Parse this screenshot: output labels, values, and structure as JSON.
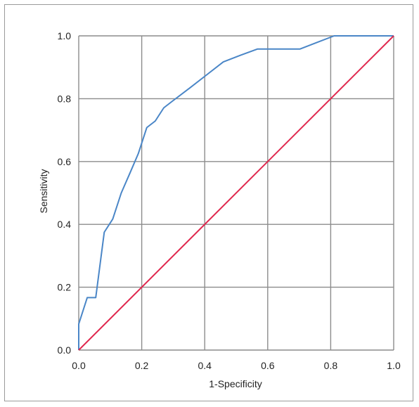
{
  "chart_data": {
    "type": "line",
    "title": "",
    "xlabel": "1-Specificity",
    "ylabel": "Sensitivity",
    "xlim": [
      0,
      1
    ],
    "ylim": [
      0,
      1
    ],
    "grid": true,
    "x_ticks": [
      "0.0",
      "0.2",
      "0.4",
      "0.6",
      "0.8",
      "1.0"
    ],
    "y_ticks": [
      "0.0",
      "0.2",
      "0.4",
      "0.6",
      "0.8",
      "1.0"
    ],
    "series": [
      {
        "color": "#4a86c7",
        "x": [
          0.0,
          0.0,
          0.027,
          0.054,
          0.081,
          0.108,
          0.135,
          0.162,
          0.189,
          0.216,
          0.243,
          0.27,
          0.297,
          0.351,
          0.405,
          0.459,
          0.513,
          0.567,
          0.594,
          0.621,
          0.648,
          0.675,
          0.702,
          0.756,
          0.811,
          0.838,
          0.865,
          1.0
        ],
        "y": [
          0.0,
          0.083,
          0.167,
          0.167,
          0.375,
          0.417,
          0.5,
          0.562,
          0.625,
          0.708,
          0.729,
          0.771,
          0.792,
          0.833,
          0.875,
          0.917,
          0.938,
          0.958,
          0.958,
          0.958,
          0.958,
          0.958,
          0.958,
          0.979,
          1.0,
          1.0,
          1.0,
          1.0
        ]
      },
      {
        "color": "#e0284e",
        "x": [
          0,
          1
        ],
        "y": [
          0,
          1
        ]
      }
    ]
  }
}
